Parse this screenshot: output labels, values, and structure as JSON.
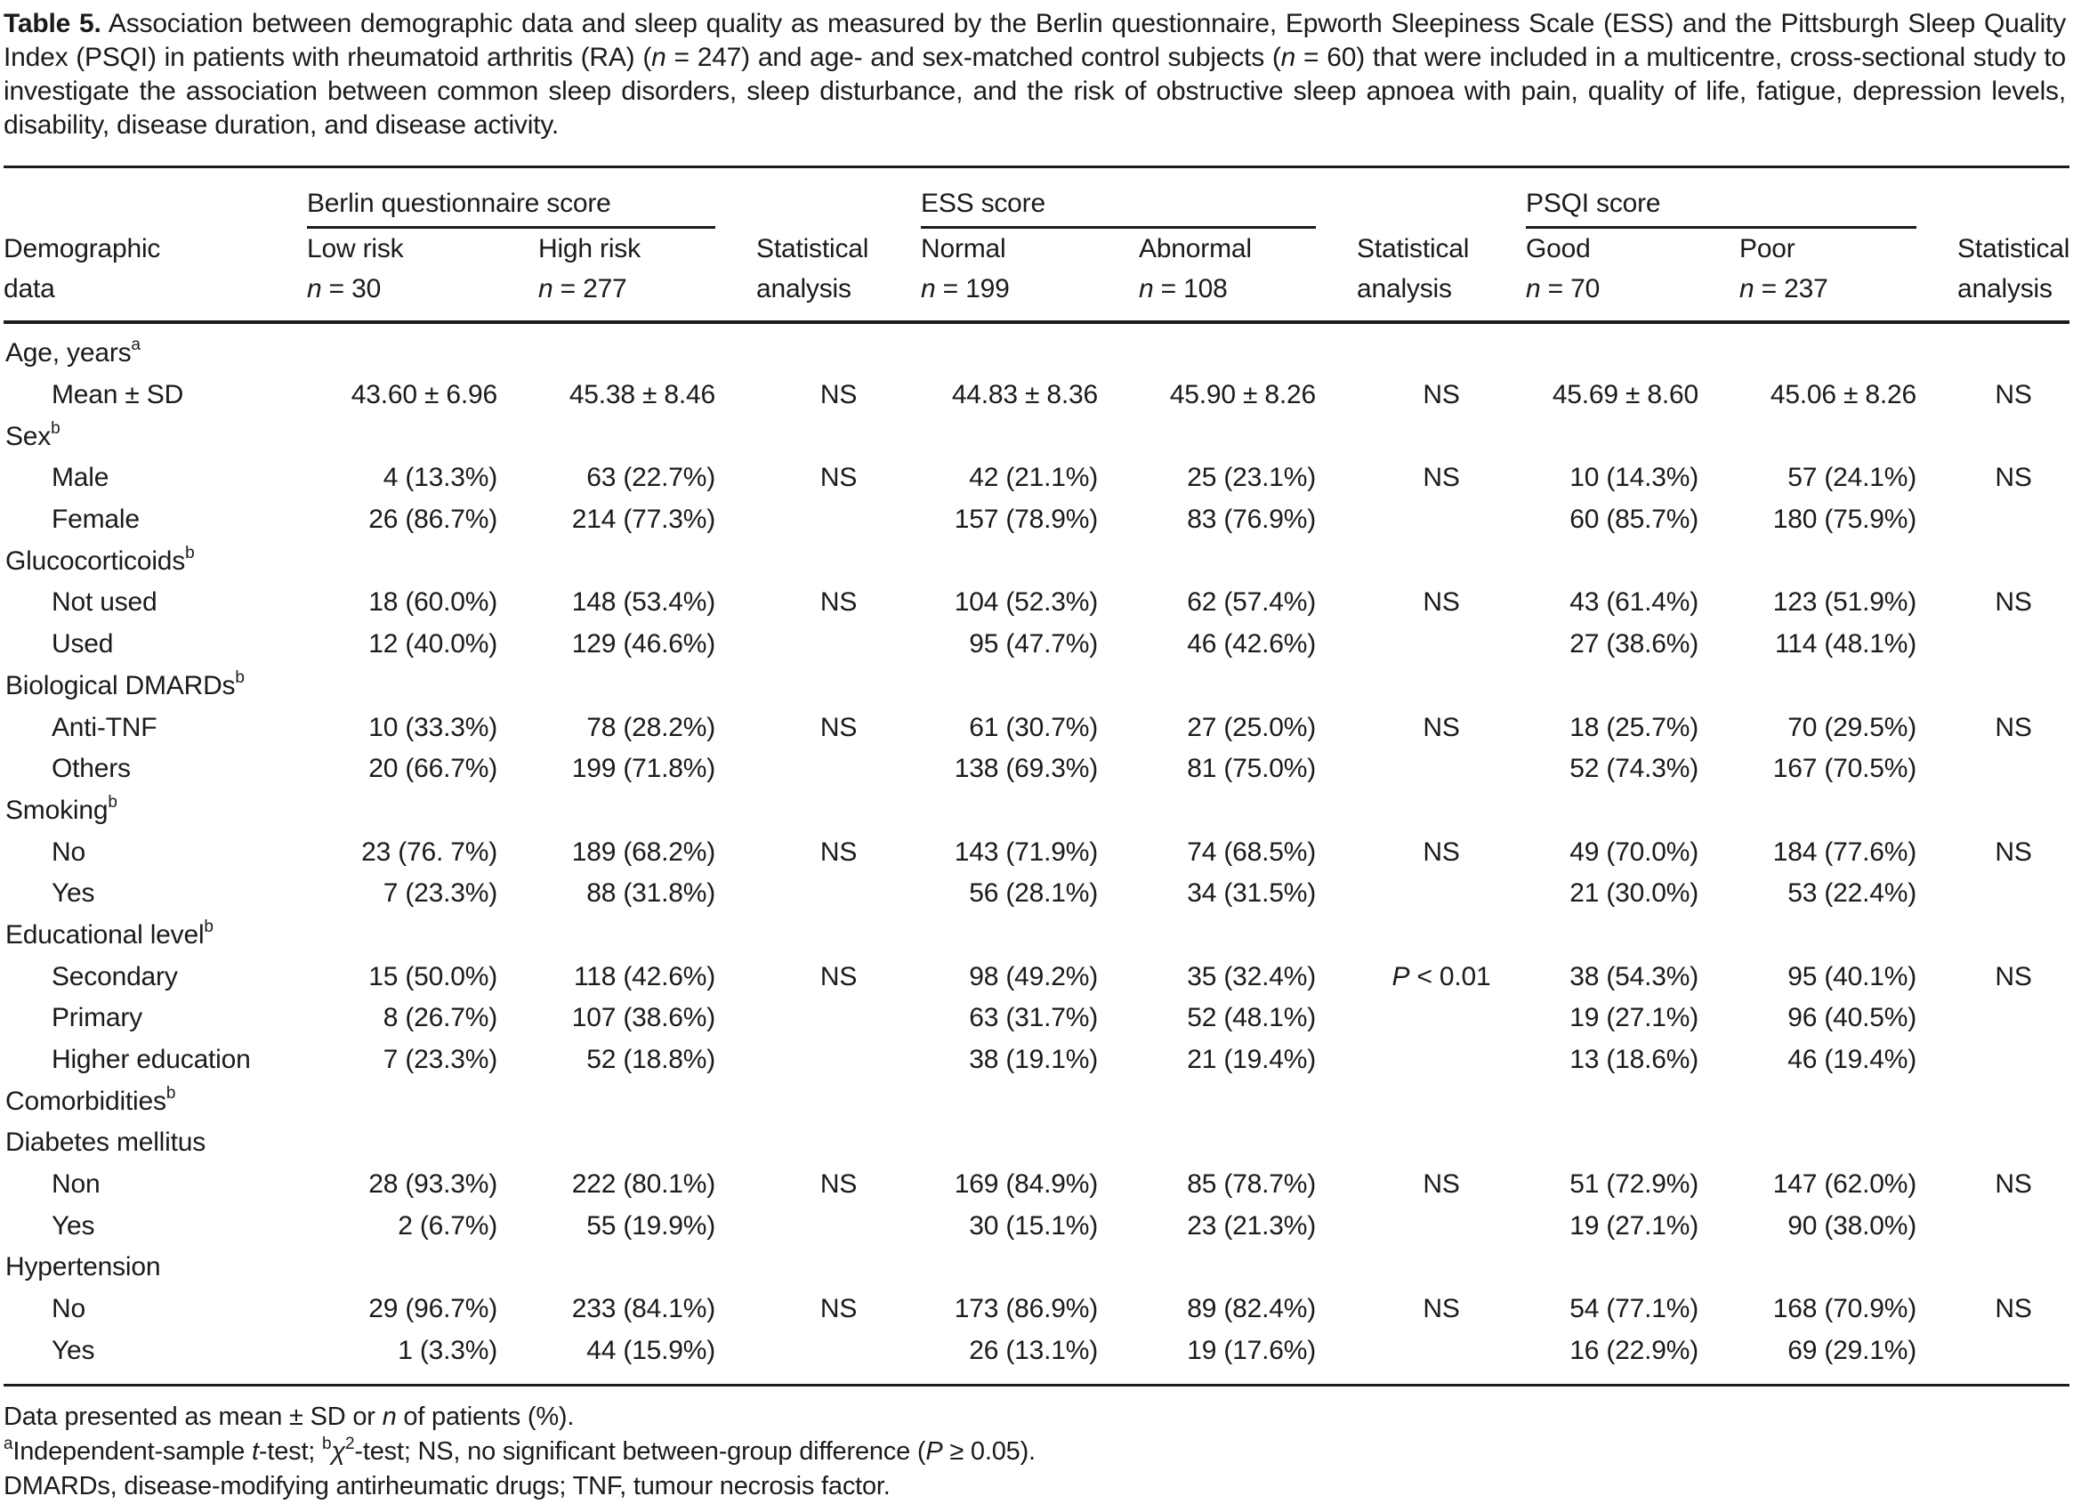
{
  "caption": {
    "segments": [
      {
        "t": "Table 5.",
        "s": "b"
      },
      {
        "t": "  Association between demographic data and sleep quality as measured by the Berlin questionnaire, Epworth Sleepiness Scale (ESS) and the Pittsburgh Sleep Quality Index (PSQI) in patients with rheumatoid arthritis (RA) ("
      },
      {
        "t": "n",
        "s": "i"
      },
      {
        "t": " = 247) and age- and sex-matched control subjects ("
      },
      {
        "t": "n",
        "s": "i"
      },
      {
        "t": " = 60) that were included in a multicentre, cross-sectional study to investigate the association between common sleep disorders, sleep disturbance, and the risk of obstructive sleep apnoea with pain, quality of life, fatigue, depression levels, disability, disease duration, and disease activity."
      }
    ]
  },
  "table": {
    "groups": [
      {
        "label": "Berlin questionnaire score"
      },
      {
        "label": "ESS score"
      },
      {
        "label": "PSQI score"
      }
    ],
    "stub_header": {
      "line1": "Demographic",
      "line2": [
        {
          "t": "data"
        }
      ]
    },
    "columns": [
      {
        "line1": "Low risk",
        "line2": [
          {
            "t": "n",
            "s": "i"
          },
          {
            "t": " = 30"
          }
        ]
      },
      {
        "line1": "High risk",
        "line2": [
          {
            "t": "n",
            "s": "i"
          },
          {
            "t": " = 277"
          }
        ]
      },
      {
        "line1": "Statistical",
        "line2": [
          {
            "t": "analysis"
          }
        ]
      },
      {
        "line1": "Normal",
        "line2": [
          {
            "t": "n",
            "s": "i"
          },
          {
            "t": " = 199"
          }
        ]
      },
      {
        "line1": "Abnormal",
        "line2": [
          {
            "t": "n",
            "s": "i"
          },
          {
            "t": " = 108"
          }
        ]
      },
      {
        "line1": "Statistical",
        "line2": [
          {
            "t": "analysis"
          }
        ]
      },
      {
        "line1": "Good",
        "line2": [
          {
            "t": "n",
            "s": "i"
          },
          {
            "t": " = 70"
          }
        ]
      },
      {
        "line1": "Poor",
        "line2": [
          {
            "t": "n",
            "s": "i"
          },
          {
            "t": " = 237"
          }
        ]
      },
      {
        "line1": "Statistical",
        "line2": [
          {
            "t": "analysis"
          }
        ]
      }
    ],
    "rows": [
      {
        "type": "section",
        "label": "Age, years",
        "sup": "a"
      },
      {
        "type": "data",
        "label": "Mean ± SD",
        "cells": [
          "43.60 ± 6.96",
          "45.38 ± 8.46",
          "NS",
          "44.83 ± 8.36",
          "45.90 ± 8.26",
          "NS",
          "45.69 ± 8.60",
          "45.06 ± 8.26",
          "NS"
        ]
      },
      {
        "type": "section",
        "label": "Sex",
        "sup": "b"
      },
      {
        "type": "data",
        "label": "Male",
        "cells": [
          "4 (13.3%)",
          "63 (22.7%)",
          "NS",
          "42 (21.1%)",
          "25 (23.1%)",
          "NS",
          "10 (14.3%)",
          "57 (24.1%)",
          "NS"
        ]
      },
      {
        "type": "data",
        "label": "Female",
        "cells": [
          "26 (86.7%)",
          "214 (77.3%)",
          "",
          "157 (78.9%)",
          "83 (76.9%)",
          "",
          "60 (85.7%)",
          "180 (75.9%)",
          ""
        ]
      },
      {
        "type": "section",
        "label": "Glucocorticoids",
        "sup": "b"
      },
      {
        "type": "data",
        "label": "Not used",
        "cells": [
          "18 (60.0%)",
          "148 (53.4%)",
          "NS",
          "104 (52.3%)",
          "62 (57.4%)",
          "NS",
          "43 (61.4%)",
          "123 (51.9%)",
          "NS"
        ]
      },
      {
        "type": "data",
        "label": "Used",
        "cells": [
          "12 (40.0%)",
          "129 (46.6%)",
          "",
          "95 (47.7%)",
          "46 (42.6%)",
          "",
          "27 (38.6%)",
          "114 (48.1%)",
          ""
        ]
      },
      {
        "type": "section",
        "label": "Biological DMARDs",
        "sup": "b"
      },
      {
        "type": "data",
        "label": "Anti-TNF",
        "cells": [
          "10 (33.3%)",
          "78 (28.2%)",
          "NS",
          "61 (30.7%)",
          "27 (25.0%)",
          "NS",
          "18 (25.7%)",
          "70 (29.5%)",
          "NS"
        ]
      },
      {
        "type": "data",
        "label": "Others",
        "cells": [
          "20 (66.7%)",
          "199 (71.8%)",
          "",
          "138 (69.3%)",
          "81 (75.0%)",
          "",
          "52 (74.3%)",
          "167 (70.5%)",
          ""
        ]
      },
      {
        "type": "section",
        "label": "Smoking",
        "sup": "b"
      },
      {
        "type": "data",
        "label": "No",
        "cells": [
          "23 (76. 7%)",
          "189 (68.2%)",
          "NS",
          "143 (71.9%)",
          "74 (68.5%)",
          "NS",
          "49 (70.0%)",
          "184 (77.6%)",
          "NS"
        ]
      },
      {
        "type": "data",
        "label": "Yes",
        "cells": [
          "7 (23.3%)",
          "88 (31.8%)",
          "",
          "56 (28.1%)",
          "34 (31.5%)",
          "",
          "21 (30.0%)",
          "53 (22.4%)",
          ""
        ]
      },
      {
        "type": "section",
        "label": "Educational level",
        "sup": "b"
      },
      {
        "type": "data",
        "label": "Secondary",
        "cells": [
          "15 (50.0%)",
          "118 (42.6%)",
          "NS",
          "98 (49.2%)",
          "35 (32.4%)",
          "P < 0.01",
          "38 (54.3%)",
          "95 (40.1%)",
          "NS"
        ]
      },
      {
        "type": "data",
        "label": "Primary",
        "cells": [
          "8 (26.7%)",
          "107 (38.6%)",
          "",
          "63 (31.7%)",
          "52 (48.1%)",
          "",
          "19 (27.1%)",
          "96 (40.5%)",
          ""
        ]
      },
      {
        "type": "data",
        "label": "Higher education",
        "cells": [
          "7 (23.3%)",
          "52 (18.8%)",
          "",
          "38 (19.1%)",
          "21 (19.4%)",
          "",
          "13 (18.6%)",
          "46 (19.4%)",
          ""
        ]
      },
      {
        "type": "section",
        "label": "Comorbidities",
        "sup": "b"
      },
      {
        "type": "section",
        "label": "Diabetes mellitus"
      },
      {
        "type": "data",
        "label": "Non",
        "cells": [
          "28 (93.3%)",
          "222 (80.1%)",
          "NS",
          "169 (84.9%)",
          "85 (78.7%)",
          "NS",
          "51 (72.9%)",
          "147 (62.0%)",
          "NS"
        ]
      },
      {
        "type": "data",
        "label": "Yes",
        "cells": [
          "2 (6.7%)",
          "55 (19.9%)",
          "",
          "30 (15.1%)",
          "23 (21.3%)",
          "",
          "19 (27.1%)",
          "90 (38.0%)",
          ""
        ]
      },
      {
        "type": "section",
        "label": "Hypertension"
      },
      {
        "type": "data",
        "label": "No",
        "cells": [
          "29 (96.7%)",
          "233 (84.1%)",
          "NS",
          "173 (86.9%)",
          "89 (82.4%)",
          "NS",
          "54 (77.1%)",
          "168 (70.9%)",
          "NS"
        ]
      },
      {
        "type": "data",
        "label": "Yes",
        "cells": [
          "1 (3.3%)",
          "44 (15.9%)",
          "",
          "26 (13.1%)",
          "19 (17.6%)",
          "",
          "16 (22.9%)",
          "69 (29.1%)",
          ""
        ]
      }
    ]
  },
  "footnotes": [
    {
      "segments": [
        {
          "t": "Data presented as mean ± SD or "
        },
        {
          "t": "n",
          "s": "i"
        },
        {
          "t": " of patients (%)."
        }
      ]
    },
    {
      "segments": [
        {
          "t": "a",
          "s": "sup"
        },
        {
          "t": "Independent-sample "
        },
        {
          "t": "t",
          "s": "i"
        },
        {
          "t": "-test; "
        },
        {
          "t": "b",
          "s": "sup"
        },
        {
          "t": "χ",
          "s": "i"
        },
        {
          "t": "2",
          "s": "sup"
        },
        {
          "t": "-test; NS, no significant between-group difference ("
        },
        {
          "t": "P",
          "s": "i"
        },
        {
          "t": " ≥ 0.05)."
        }
      ]
    },
    {
      "segments": [
        {
          "t": "DMARDs, disease-modifying antirheumatic drugs; TNF, tumour necrosis factor."
        }
      ]
    }
  ]
}
